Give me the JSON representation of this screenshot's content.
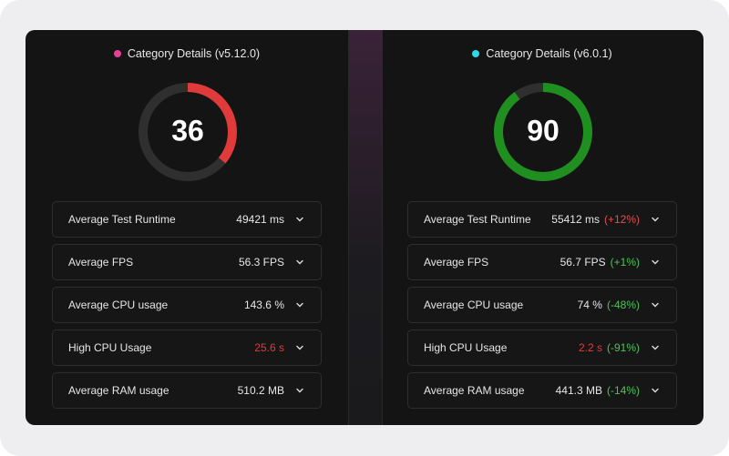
{
  "gauge_range": [
    0,
    100
  ],
  "panels": [
    {
      "title": "Category Details (v5.12.0)",
      "dot_color": "#e8409a",
      "score": 36,
      "score_color": "#e03a3a",
      "rows": [
        {
          "label": "Average Test Runtime",
          "value": "49421 ms"
        },
        {
          "label": "Average FPS",
          "value": "56.3 FPS"
        },
        {
          "label": "Average CPU usage",
          "value": "143.6 %"
        },
        {
          "label": "High CPU Usage",
          "value": "25.6 s",
          "value_color": "#e03a3a"
        },
        {
          "label": "Average RAM usage",
          "value": "510.2 MB"
        }
      ]
    },
    {
      "title": "Category Details (v6.0.1)",
      "dot_color": "#2fd8e8",
      "score": 90,
      "score_color": "#1f8f1f",
      "rows": [
        {
          "label": "Average Test Runtime",
          "value": "55412 ms",
          "diff": "(+12%)",
          "diff_color": "#e05050"
        },
        {
          "label": "Average FPS",
          "value": "56.7 FPS",
          "diff": "(+1%)",
          "diff_color": "#4cc45a"
        },
        {
          "label": "Average CPU usage",
          "value": "74 %",
          "diff": "(-48%)",
          "diff_color": "#4cc45a"
        },
        {
          "label": "High CPU Usage",
          "value": "2.2 s",
          "value_color": "#e03a3a",
          "diff": "(-91%)",
          "diff_color": "#4cc45a"
        },
        {
          "label": "Average RAM usage",
          "value": "441.3 MB",
          "diff": "(-14%)",
          "diff_color": "#4cc45a"
        }
      ]
    }
  ]
}
